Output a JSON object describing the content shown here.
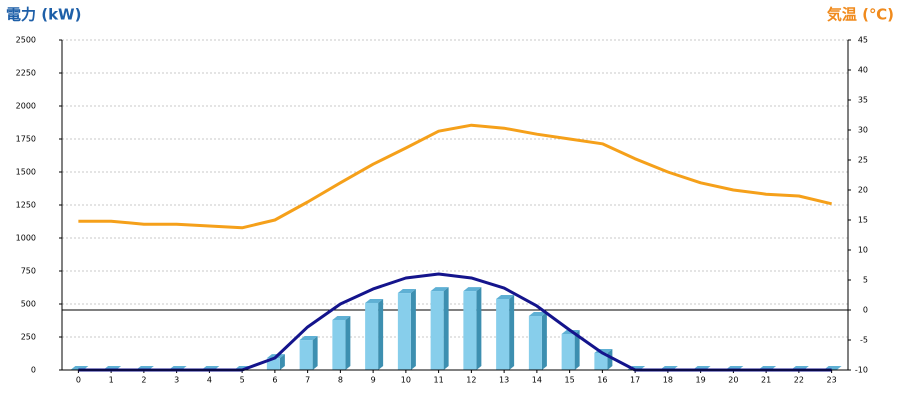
{
  "chart_data": {
    "type": "combo",
    "y_label": "電力 (kW)",
    "y2_label": "気温 (℃)",
    "y_label_color": "#1e5fa8",
    "y2_label_color": "#f08a1c",
    "categories": [
      "0",
      "1",
      "2",
      "3",
      "4",
      "5",
      "6",
      "7",
      "8",
      "9",
      "10",
      "11",
      "12",
      "13",
      "14",
      "15",
      "16",
      "17",
      "18",
      "19",
      "20",
      "21",
      "22",
      "23"
    ],
    "series": [
      {
        "type": "bar",
        "color": "#87ceeb",
        "values": [
          0,
          0,
          0,
          0,
          0,
          0,
          90,
          227,
          379,
          508,
          583,
          598,
          598,
          538,
          409,
          273,
          129,
          0,
          0,
          0,
          0,
          0,
          0,
          0
        ]
      },
      {
        "type": "line",
        "color": "#14148c",
        "values": [
          0,
          0,
          0,
          0,
          0,
          0,
          91,
          326,
          500,
          614,
          697,
          727,
          697,
          621,
          485,
          303,
          129,
          0,
          0,
          0,
          0,
          0,
          0,
          0
        ]
      },
      {
        "type": "line",
        "axis": "y2",
        "color": "#f5a01a",
        "values": [
          14.8,
          14.8,
          14.3,
          14.3,
          14,
          13.7,
          15,
          18,
          21.2,
          24.3,
          27,
          29.8,
          30.8,
          30.3,
          29.3,
          28.5,
          27.7,
          25.2,
          23,
          21.2,
          20,
          19.3,
          19,
          17.7
        ]
      }
    ],
    "ylim": [
      0,
      2500
    ],
    "yticks": [
      0,
      250,
      500,
      750,
      1000,
      1250,
      1500,
      1750,
      2000,
      2250,
      2500
    ],
    "y2lim": [
      -10,
      45
    ],
    "y2ticks": [
      -10,
      -5,
      0,
      5,
      10,
      15,
      20,
      25,
      30,
      35,
      40,
      45
    ],
    "grid": true,
    "y2_zero_line": true
  }
}
